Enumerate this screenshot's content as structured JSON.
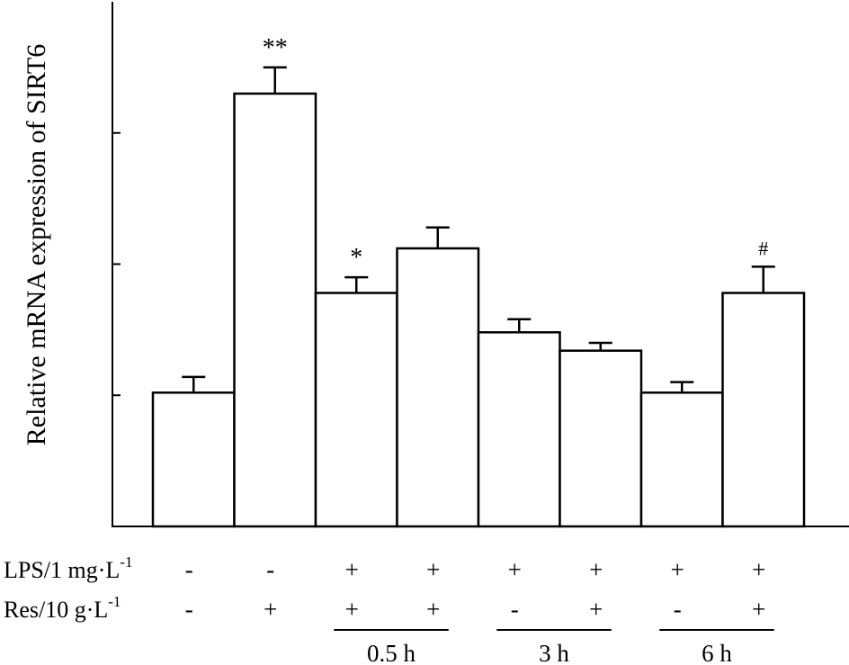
{
  "chart_data": {
    "type": "bar",
    "ylabel": "Relative mRNA expression of SIRT6",
    "ylim": [
      0,
      2
    ],
    "yticks": [
      0.5,
      1.0,
      1.5
    ],
    "show_y_tick_labels": false,
    "grid": false,
    "bars": [
      {
        "value": 0.51,
        "error": 0.06,
        "annotation": ""
      },
      {
        "value": 1.65,
        "error": 0.1,
        "annotation": "**"
      },
      {
        "value": 0.89,
        "error": 0.06,
        "annotation": "*"
      },
      {
        "value": 1.06,
        "error": 0.08,
        "annotation": ""
      },
      {
        "value": 0.74,
        "error": 0.05,
        "annotation": ""
      },
      {
        "value": 0.67,
        "error": 0.03,
        "annotation": ""
      },
      {
        "value": 0.51,
        "error": 0.04,
        "annotation": ""
      },
      {
        "value": 0.89,
        "error": 0.1,
        "annotation": "#"
      }
    ],
    "treatment_rows": [
      {
        "label_main": "LPS/1 mg·L",
        "label_sup": "-1",
        "values": [
          "-",
          "-",
          "+",
          "+",
          "+",
          "+",
          "+",
          "+"
        ]
      },
      {
        "label_main": "Res/10 g·L",
        "label_sup": "-1",
        "values": [
          "-",
          "+",
          "+",
          "+",
          "-",
          "+",
          "-",
          "+"
        ]
      }
    ],
    "time_groups": [
      {
        "label": "0.5 h",
        "start_bar": 2,
        "end_bar": 3
      },
      {
        "label": "3 h",
        "start_bar": 4,
        "end_bar": 5
      },
      {
        "label": "6 h",
        "start_bar": 6,
        "end_bar": 7
      }
    ]
  }
}
